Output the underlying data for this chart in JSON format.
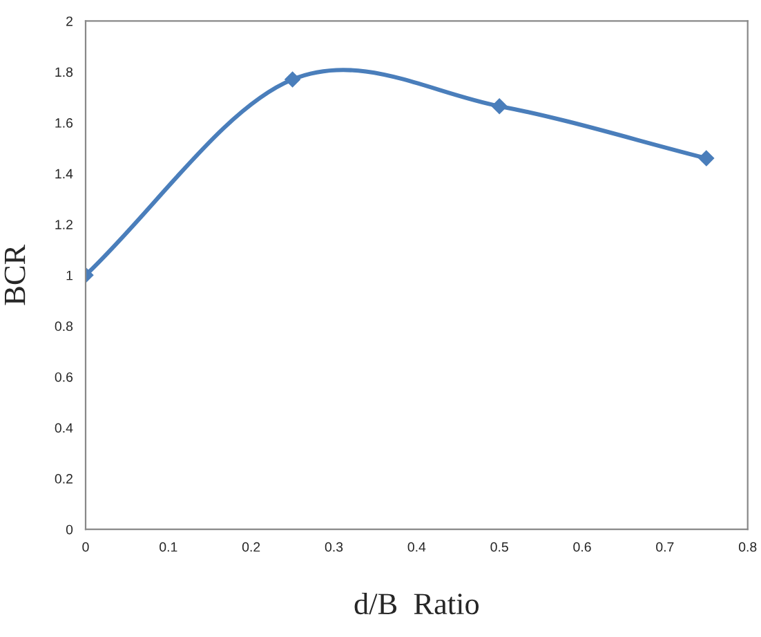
{
  "chart_data": {
    "type": "line",
    "xlabel": "d/B  Ratio",
    "ylabel": "BCR",
    "x": [
      0,
      0.25,
      0.5,
      0.75
    ],
    "series": [
      {
        "color": "#4a7ebb",
        "values": [
          1.0,
          1.77,
          1.665,
          1.46
        ]
      }
    ],
    "xlim": [
      0,
      0.8
    ],
    "xticks": [
      {
        "value": 0,
        "label": "0"
      },
      0.1,
      0.2,
      0.3,
      0.4,
      0.5,
      0.6,
      0.7,
      0.8
    ],
    "ylim": [
      0,
      2
    ],
    "yticks": [
      {
        "value": 0,
        "label": "0"
      },
      0.2,
      0.4,
      0.6,
      0.8,
      {
        "value": 1,
        "label": "1"
      },
      1.2,
      1.4,
      1.6,
      1.8,
      {
        "value": 2,
        "label": "2"
      }
    ],
    "marker": "diamond",
    "line_style": "solid",
    "grid": false,
    "legend": false
  }
}
